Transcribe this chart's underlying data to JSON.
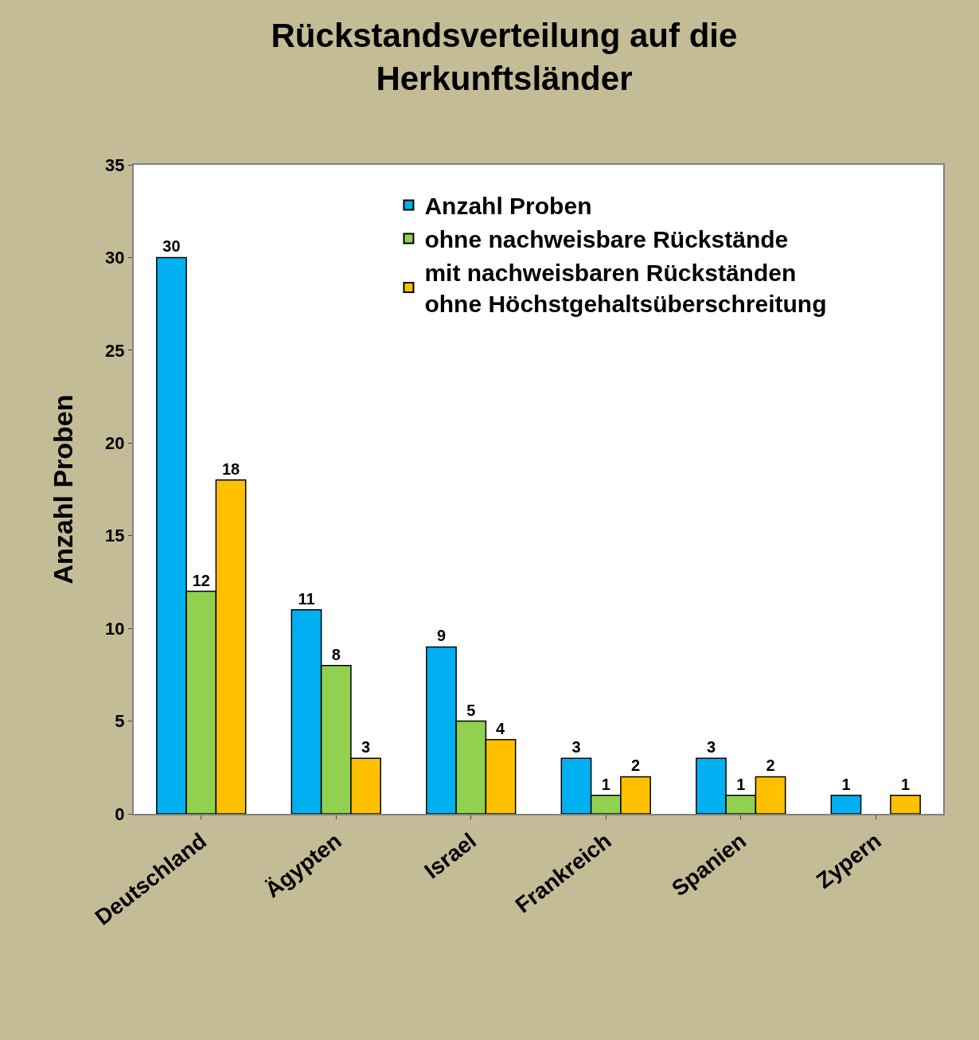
{
  "chart_data": {
    "type": "bar",
    "title": "Rückstandsverteilung auf die\nHerkunftsländer",
    "ylabel": "Anzahl Proben",
    "categories": [
      "Deutschland",
      "Ägypten",
      "Israel",
      "Frankreich",
      "Spanien",
      "Zypern"
    ],
    "series": [
      {
        "name": "Anzahl Proben",
        "color": "#00b0f0",
        "values": [
          30,
          11,
          9,
          3,
          3,
          1
        ],
        "value_labels": [
          "30",
          "11",
          "9",
          "3",
          "3",
          "1"
        ]
      },
      {
        "name": "ohne nachweisbare Rückstände",
        "color": "#92d050",
        "values": [
          12,
          8,
          5,
          1,
          1,
          null
        ],
        "value_labels": [
          "12",
          "8",
          "5",
          "1",
          "1",
          null
        ]
      },
      {
        "name": "mit nachweisbaren Rückständen\nohne Höchstgehaltsüberschreitung",
        "color": "#ffc000",
        "values": [
          18,
          3,
          4,
          2,
          2,
          1
        ],
        "value_labels": [
          "18",
          "3",
          "4",
          "2",
          "2",
          "1"
        ]
      }
    ],
    "ylim": [
      0,
      35
    ],
    "yticks": [
      0,
      5,
      10,
      15,
      20,
      25,
      30,
      35
    ],
    "legend": "top right"
  }
}
